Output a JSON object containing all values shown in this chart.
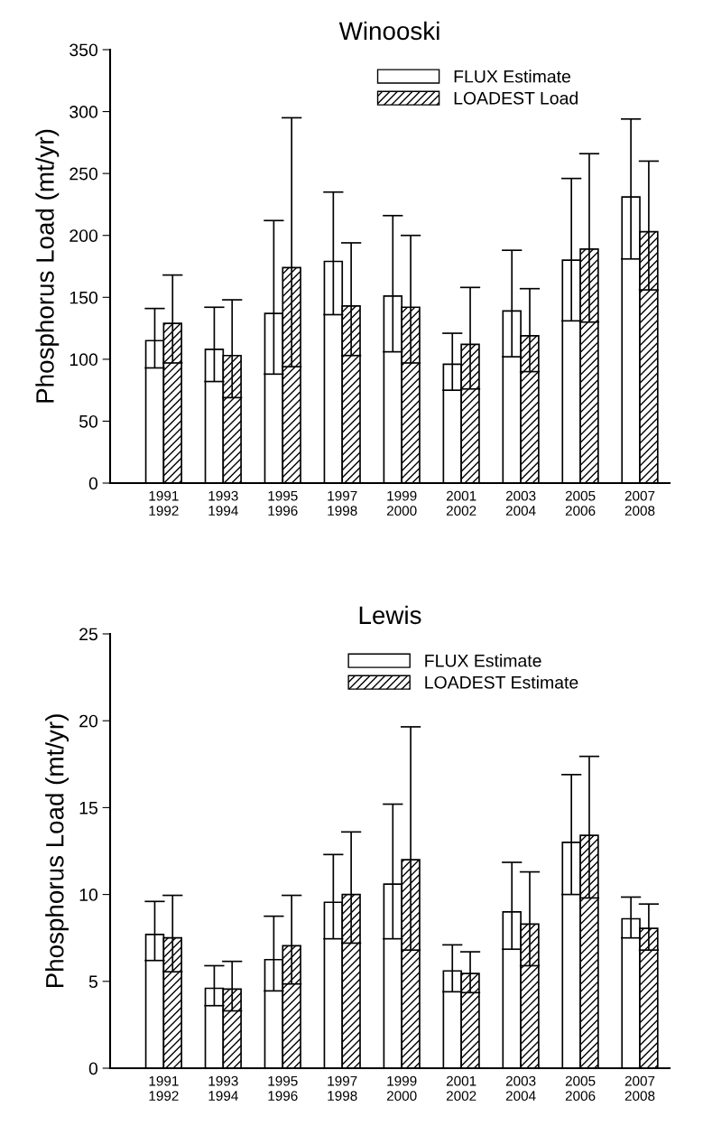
{
  "chart_data": [
    {
      "type": "bar",
      "title": "Winooski",
      "ylabel": "Phosphorus Load (mt/yr)",
      "categories": [
        "1991\n1992",
        "1993\n1994",
        "1995\n1996",
        "1997\n1998",
        "1999\n2000",
        "2001\n2002",
        "2003\n2004",
        "2005\n2006",
        "2007\n2008"
      ],
      "series": [
        {
          "name": "FLUX Estimate",
          "color": "#ffffff",
          "values": [
            115,
            108,
            137,
            179,
            151,
            96,
            139,
            180,
            231
          ],
          "errors": [
            [
              93,
              141
            ],
            [
              82,
              142
            ],
            [
              88,
              212
            ],
            [
              136,
              235
            ],
            [
              106,
              216
            ],
            [
              75,
              121
            ],
            [
              102,
              188
            ],
            [
              131,
              246
            ],
            [
              181,
              294
            ]
          ]
        },
        {
          "name": "LOADEST Load",
          "color": "#000000",
          "values": [
            129,
            103,
            174,
            143,
            142,
            112,
            119,
            189,
            203
          ],
          "errors": [
            [
              97,
              168
            ],
            [
              69,
              148
            ],
            [
              94,
              295
            ],
            [
              103,
              194
            ],
            [
              97,
              200
            ],
            [
              76,
              158
            ],
            [
              90,
              157
            ],
            [
              130,
              266
            ],
            [
              156,
              260
            ]
          ]
        }
      ],
      "ylim": [
        0,
        350
      ],
      "yticks": [
        0,
        50,
        100,
        150,
        200,
        250,
        300,
        350
      ],
      "grid": false,
      "legend": "top right"
    },
    {
      "type": "bar",
      "title": "Lewis",
      "ylabel": "Phosphorus Load (mt/yr)",
      "categories": [
        "1991\n1992",
        "1993\n1994",
        "1995\n1996",
        "1997\n1998",
        "1999\n2000",
        "2001\n2002",
        "2003\n2004",
        "2005\n2006",
        "2007\n2008"
      ],
      "series": [
        {
          "name": "FLUX Estimate",
          "color": "#ffffff",
          "values": [
            7.7,
            4.6,
            6.25,
            9.55,
            10.6,
            5.6,
            9.0,
            13.0,
            8.6
          ],
          "errors": [
            [
              6.2,
              9.6
            ],
            [
              3.6,
              5.9
            ],
            [
              4.45,
              8.75
            ],
            [
              7.45,
              12.3
            ],
            [
              7.45,
              15.2
            ],
            [
              4.4,
              7.1
            ],
            [
              6.85,
              11.85
            ],
            [
              10.0,
              16.9
            ],
            [
              7.5,
              9.85
            ]
          ]
        },
        {
          "name": "LOADEST Estimate",
          "color": "#000000",
          "values": [
            7.5,
            4.55,
            7.05,
            10.0,
            12.0,
            5.45,
            8.3,
            13.4,
            8.05
          ],
          "errors": [
            [
              5.55,
              9.95
            ],
            [
              3.3,
              6.15
            ],
            [
              4.85,
              9.95
            ],
            [
              7.2,
              13.6
            ],
            [
              6.8,
              19.65
            ],
            [
              4.35,
              6.7
            ],
            [
              5.9,
              11.3
            ],
            [
              9.8,
              17.95
            ],
            [
              6.8,
              9.45
            ]
          ]
        }
      ],
      "ylim": [
        0,
        25
      ],
      "yticks": [
        0,
        5,
        10,
        15,
        20,
        25
      ],
      "grid": false,
      "legend": "top right"
    }
  ]
}
